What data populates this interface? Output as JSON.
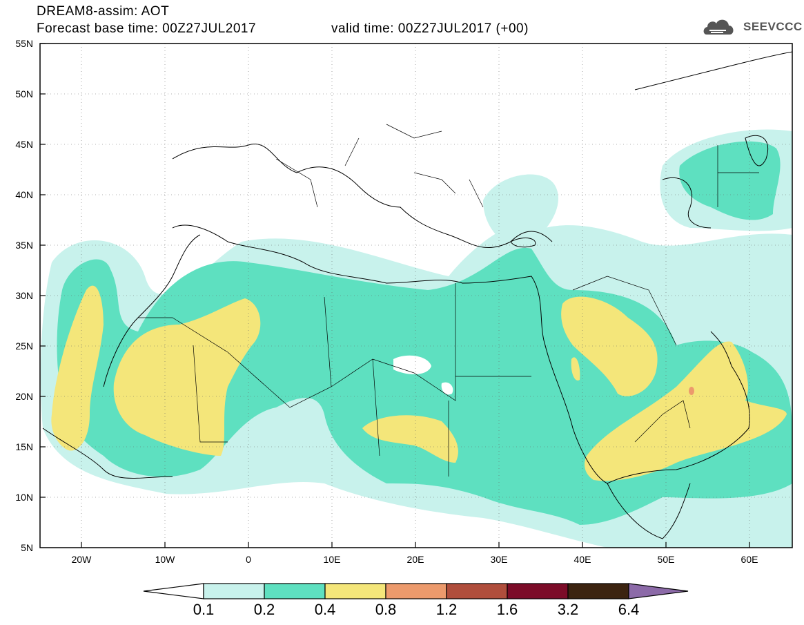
{
  "header": {
    "title": "DREAM8-assim: AOT",
    "forecast_base": "Forecast base time: 00Z27JUL2017",
    "valid_time": "valid time: 00Z27JUL2017 (+00)"
  },
  "logo": {
    "text": "SEEVCCC",
    "icon": "cloud-icon"
  },
  "map": {
    "lat_labels": [
      "55N",
      "50N",
      "45N",
      "40N",
      "35N",
      "30N",
      "25N",
      "20N",
      "15N",
      "10N",
      "5N"
    ],
    "lon_labels": [
      "20W",
      "10W",
      "0",
      "10E",
      "20E",
      "30E",
      "40E",
      "50E",
      "60E"
    ],
    "lat_range": [
      5,
      55
    ],
    "lon_range": [
      -25,
      65
    ],
    "grid": "dotted"
  },
  "legend": {
    "levels": [
      "0.1",
      "0.2",
      "0.4",
      "0.8",
      "1.2",
      "1.6",
      "3.2",
      "6.4"
    ],
    "colors": [
      "#ffffff",
      "#c8f2ec",
      "#5ee0c0",
      "#f4e67a",
      "#ec9a6c",
      "#b04e3c",
      "#7c0c28",
      "#3c2410",
      "#8c6aa8"
    ]
  }
}
